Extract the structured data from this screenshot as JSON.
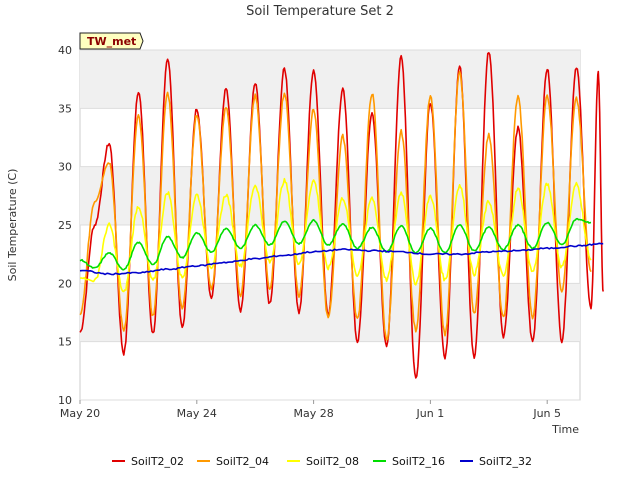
{
  "chart_data": {
    "type": "line",
    "title": "Soil Temperature Set 2",
    "xlabel": "Time",
    "ylabel": "Soil Temperature (C)",
    "badge": "TW_met",
    "x_ticks": [
      "May 20",
      "May 24",
      "May 28",
      "Jun 1",
      "Jun 5"
    ],
    "y_ticks": [
      10,
      15,
      20,
      25,
      30,
      35,
      40
    ],
    "xlim": [
      "2024-05-20",
      "2024-06-06"
    ],
    "ylim": [
      10,
      40
    ],
    "grid": true,
    "legend_position": "bottom",
    "series": [
      {
        "name": "SoilT2_02",
        "color": "#e00000",
        "values": [
          [
            "2024-05-20",
            15.8
          ],
          [
            "2024-05-20 12:00",
            25.0
          ],
          [
            "2024-05-21 00:00",
            32.0
          ],
          [
            "2024-05-21 12:00",
            14.0
          ],
          [
            "2024-05-22 00:00",
            36.5
          ],
          [
            "2024-05-22 12:00",
            15.7
          ],
          [
            "2024-05-23 00:00",
            39.3
          ],
          [
            "2024-05-23 12:00",
            16.2
          ],
          [
            "2024-05-24 00:00",
            35.0
          ],
          [
            "2024-05-24 12:00",
            18.8
          ],
          [
            "2024-05-25 00:00",
            36.7
          ],
          [
            "2024-05-25 12:00",
            17.7
          ],
          [
            "2024-05-26 00:00",
            37.1
          ],
          [
            "2024-05-26 12:00",
            18.2
          ],
          [
            "2024-05-27 00:00",
            38.4
          ],
          [
            "2024-05-27 12:00",
            17.5
          ],
          [
            "2024-05-28 00:00",
            38.3
          ],
          [
            "2024-05-28 12:00",
            17.4
          ],
          [
            "2024-05-29 00:00",
            36.6
          ],
          [
            "2024-05-29 12:00",
            15.0
          ],
          [
            "2024-05-30 00:00",
            34.6
          ],
          [
            "2024-05-30 12:00",
            14.5
          ],
          [
            "2024-05-31 00:00",
            39.4
          ],
          [
            "2024-05-31 12:00",
            11.9
          ],
          [
            "2024-06-01 00:00",
            35.5
          ],
          [
            "2024-06-01 12:00",
            13.6
          ],
          [
            "2024-06-02 00:00",
            38.6
          ],
          [
            "2024-06-02 12:00",
            13.6
          ],
          [
            "2024-06-03 00:00",
            39.9
          ],
          [
            "2024-06-03 12:00",
            15.5
          ],
          [
            "2024-06-04 00:00",
            33.3
          ],
          [
            "2024-06-04 12:00",
            15.0
          ],
          [
            "2024-06-05 00:00",
            38.4
          ],
          [
            "2024-06-05 12:00",
            15.1
          ],
          [
            "2024-06-06 00:00",
            38.6
          ],
          [
            "2024-06-06 12:00",
            17.8
          ],
          [
            "2024-06-06 18:00",
            38.0
          ],
          [
            "2024-06-06 22:00",
            19.3
          ]
        ]
      },
      {
        "name": "SoilT2_04",
        "color": "#ff9900",
        "values": [
          [
            "2024-05-20",
            17.2
          ],
          [
            "2024-05-20 12:00",
            27.0
          ],
          [
            "2024-05-21 00:00",
            30.4
          ],
          [
            "2024-05-21 12:00",
            16.0
          ],
          [
            "2024-05-22 00:00",
            34.3
          ],
          [
            "2024-05-22 12:00",
            17.2
          ],
          [
            "2024-05-23 00:00",
            36.3
          ],
          [
            "2024-05-23 12:00",
            17.8
          ],
          [
            "2024-05-24 00:00",
            34.4
          ],
          [
            "2024-05-24 12:00",
            19.5
          ],
          [
            "2024-05-25 00:00",
            35.0
          ],
          [
            "2024-05-25 12:00",
            19.0
          ],
          [
            "2024-05-26 00:00",
            36.1
          ],
          [
            "2024-05-26 12:00",
            19.5
          ],
          [
            "2024-05-27 00:00",
            36.3
          ],
          [
            "2024-05-27 12:00",
            18.9
          ],
          [
            "2024-05-28 00:00",
            34.9
          ],
          [
            "2024-05-28 12:00",
            17.0
          ],
          [
            "2024-05-29 00:00",
            32.6
          ],
          [
            "2024-05-29 12:00",
            16.9
          ],
          [
            "2024-05-30 00:00",
            36.3
          ],
          [
            "2024-05-30 12:00",
            15.2
          ],
          [
            "2024-05-31 00:00",
            33.0
          ],
          [
            "2024-05-31 12:00",
            16.0
          ],
          [
            "2024-06-01 00:00",
            36.0
          ],
          [
            "2024-06-01 12:00",
            15.6
          ],
          [
            "2024-06-02 00:00",
            38.0
          ],
          [
            "2024-06-02 12:00",
            17.5
          ],
          [
            "2024-06-03 00:00",
            32.7
          ],
          [
            "2024-06-03 12:00",
            17.0
          ],
          [
            "2024-06-04 00:00",
            36.0
          ],
          [
            "2024-06-04 12:00",
            17.0
          ],
          [
            "2024-06-05 00:00",
            36.1
          ],
          [
            "2024-06-05 12:00",
            19.4
          ],
          [
            "2024-06-06 00:00",
            35.8
          ],
          [
            "2024-06-06 12:00",
            21.0
          ]
        ]
      },
      {
        "name": "SoilT2_08",
        "color": "#ffff00",
        "values": [
          [
            "2024-05-20",
            20.5
          ],
          [
            "2024-05-20 12:00",
            20.2
          ],
          [
            "2024-05-21 00:00",
            25.0
          ],
          [
            "2024-05-21 12:00",
            19.2
          ],
          [
            "2024-05-22 00:00",
            26.6
          ],
          [
            "2024-05-22 12:00",
            20.2
          ],
          [
            "2024-05-23 00:00",
            27.8
          ],
          [
            "2024-05-23 12:00",
            20.5
          ],
          [
            "2024-05-24 00:00",
            27.6
          ],
          [
            "2024-05-24 12:00",
            21.4
          ],
          [
            "2024-05-25 00:00",
            27.6
          ],
          [
            "2024-05-25 12:00",
            21.5
          ],
          [
            "2024-05-26 00:00",
            28.4
          ],
          [
            "2024-05-26 12:00",
            21.8
          ],
          [
            "2024-05-27 00:00",
            28.8
          ],
          [
            "2024-05-27 12:00",
            21.7
          ],
          [
            "2024-05-28 00:00",
            28.8
          ],
          [
            "2024-05-28 12:00",
            21.3
          ],
          [
            "2024-05-29 00:00",
            27.3
          ],
          [
            "2024-05-29 12:00",
            20.7
          ],
          [
            "2024-05-30 00:00",
            27.3
          ],
          [
            "2024-05-30 12:00",
            20.3
          ],
          [
            "2024-05-31 00:00",
            27.8
          ],
          [
            "2024-05-31 12:00",
            20.0
          ],
          [
            "2024-06-01 00:00",
            27.5
          ],
          [
            "2024-06-01 12:00",
            20.3
          ],
          [
            "2024-06-02 00:00",
            28.4
          ],
          [
            "2024-06-02 12:00",
            20.8
          ],
          [
            "2024-06-03 00:00",
            27.0
          ],
          [
            "2024-06-03 12:00",
            20.6
          ],
          [
            "2024-06-04 00:00",
            28.1
          ],
          [
            "2024-06-04 12:00",
            21.0
          ],
          [
            "2024-06-05 00:00",
            28.5
          ],
          [
            "2024-06-05 12:00",
            21.4
          ],
          [
            "2024-06-06 00:00",
            28.5
          ],
          [
            "2024-06-06 12:00",
            22.0
          ]
        ]
      },
      {
        "name": "SoilT2_16",
        "color": "#00dd00",
        "values": [
          [
            "2024-05-20",
            22.0
          ],
          [
            "2024-05-20 12:00",
            21.3
          ],
          [
            "2024-05-21 00:00",
            22.6
          ],
          [
            "2024-05-21 12:00",
            21.2
          ],
          [
            "2024-05-22 00:00",
            23.5
          ],
          [
            "2024-05-22 12:00",
            21.6
          ],
          [
            "2024-05-23 00:00",
            24.0
          ],
          [
            "2024-05-23 12:00",
            22.2
          ],
          [
            "2024-05-24 00:00",
            24.3
          ],
          [
            "2024-05-24 12:00",
            22.7
          ],
          [
            "2024-05-25 00:00",
            24.7
          ],
          [
            "2024-05-25 12:00",
            23.0
          ],
          [
            "2024-05-26 00:00",
            25.0
          ],
          [
            "2024-05-26 12:00",
            23.3
          ],
          [
            "2024-05-27 00:00",
            25.3
          ],
          [
            "2024-05-27 12:00",
            23.4
          ],
          [
            "2024-05-28 00:00",
            25.4
          ],
          [
            "2024-05-28 12:00",
            23.3
          ],
          [
            "2024-05-29 00:00",
            25.1
          ],
          [
            "2024-05-29 12:00",
            23.0
          ],
          [
            "2024-05-30 00:00",
            24.8
          ],
          [
            "2024-05-30 12:00",
            22.7
          ],
          [
            "2024-05-31 00:00",
            24.9
          ],
          [
            "2024-05-31 12:00",
            22.6
          ],
          [
            "2024-06-01 00:00",
            24.7
          ],
          [
            "2024-06-01 12:00",
            22.6
          ],
          [
            "2024-06-02 00:00",
            25.0
          ],
          [
            "2024-06-02 12:00",
            22.8
          ],
          [
            "2024-06-03 00:00",
            24.8
          ],
          [
            "2024-06-03 12:00",
            22.9
          ],
          [
            "2024-06-04 00:00",
            25.0
          ],
          [
            "2024-06-04 12:00",
            23.0
          ],
          [
            "2024-06-05 00:00",
            25.2
          ],
          [
            "2024-06-05 12:00",
            23.3
          ],
          [
            "2024-06-06 00:00",
            25.5
          ],
          [
            "2024-06-06 12:00",
            25.2
          ]
        ]
      },
      {
        "name": "SoilT2_32",
        "color": "#0000cc",
        "values": [
          [
            "2024-05-20",
            21.1
          ],
          [
            "2024-05-21 00:00",
            20.8
          ],
          [
            "2024-05-22 00:00",
            20.9
          ],
          [
            "2024-05-23 00:00",
            21.2
          ],
          [
            "2024-05-24 00:00",
            21.5
          ],
          [
            "2024-05-25 00:00",
            21.8
          ],
          [
            "2024-05-26 00:00",
            22.1
          ],
          [
            "2024-05-27 00:00",
            22.4
          ],
          [
            "2024-05-28 00:00",
            22.7
          ],
          [
            "2024-05-29 00:00",
            22.9
          ],
          [
            "2024-05-30 00:00",
            22.8
          ],
          [
            "2024-05-31 00:00",
            22.7
          ],
          [
            "2024-06-01 00:00",
            22.5
          ],
          [
            "2024-06-02 00:00",
            22.5
          ],
          [
            "2024-06-03 00:00",
            22.7
          ],
          [
            "2024-06-04 00:00",
            22.8
          ],
          [
            "2024-06-05 00:00",
            23.0
          ],
          [
            "2024-06-06 00:00",
            23.2
          ],
          [
            "2024-06-06 22:00",
            23.4
          ]
        ]
      }
    ]
  }
}
